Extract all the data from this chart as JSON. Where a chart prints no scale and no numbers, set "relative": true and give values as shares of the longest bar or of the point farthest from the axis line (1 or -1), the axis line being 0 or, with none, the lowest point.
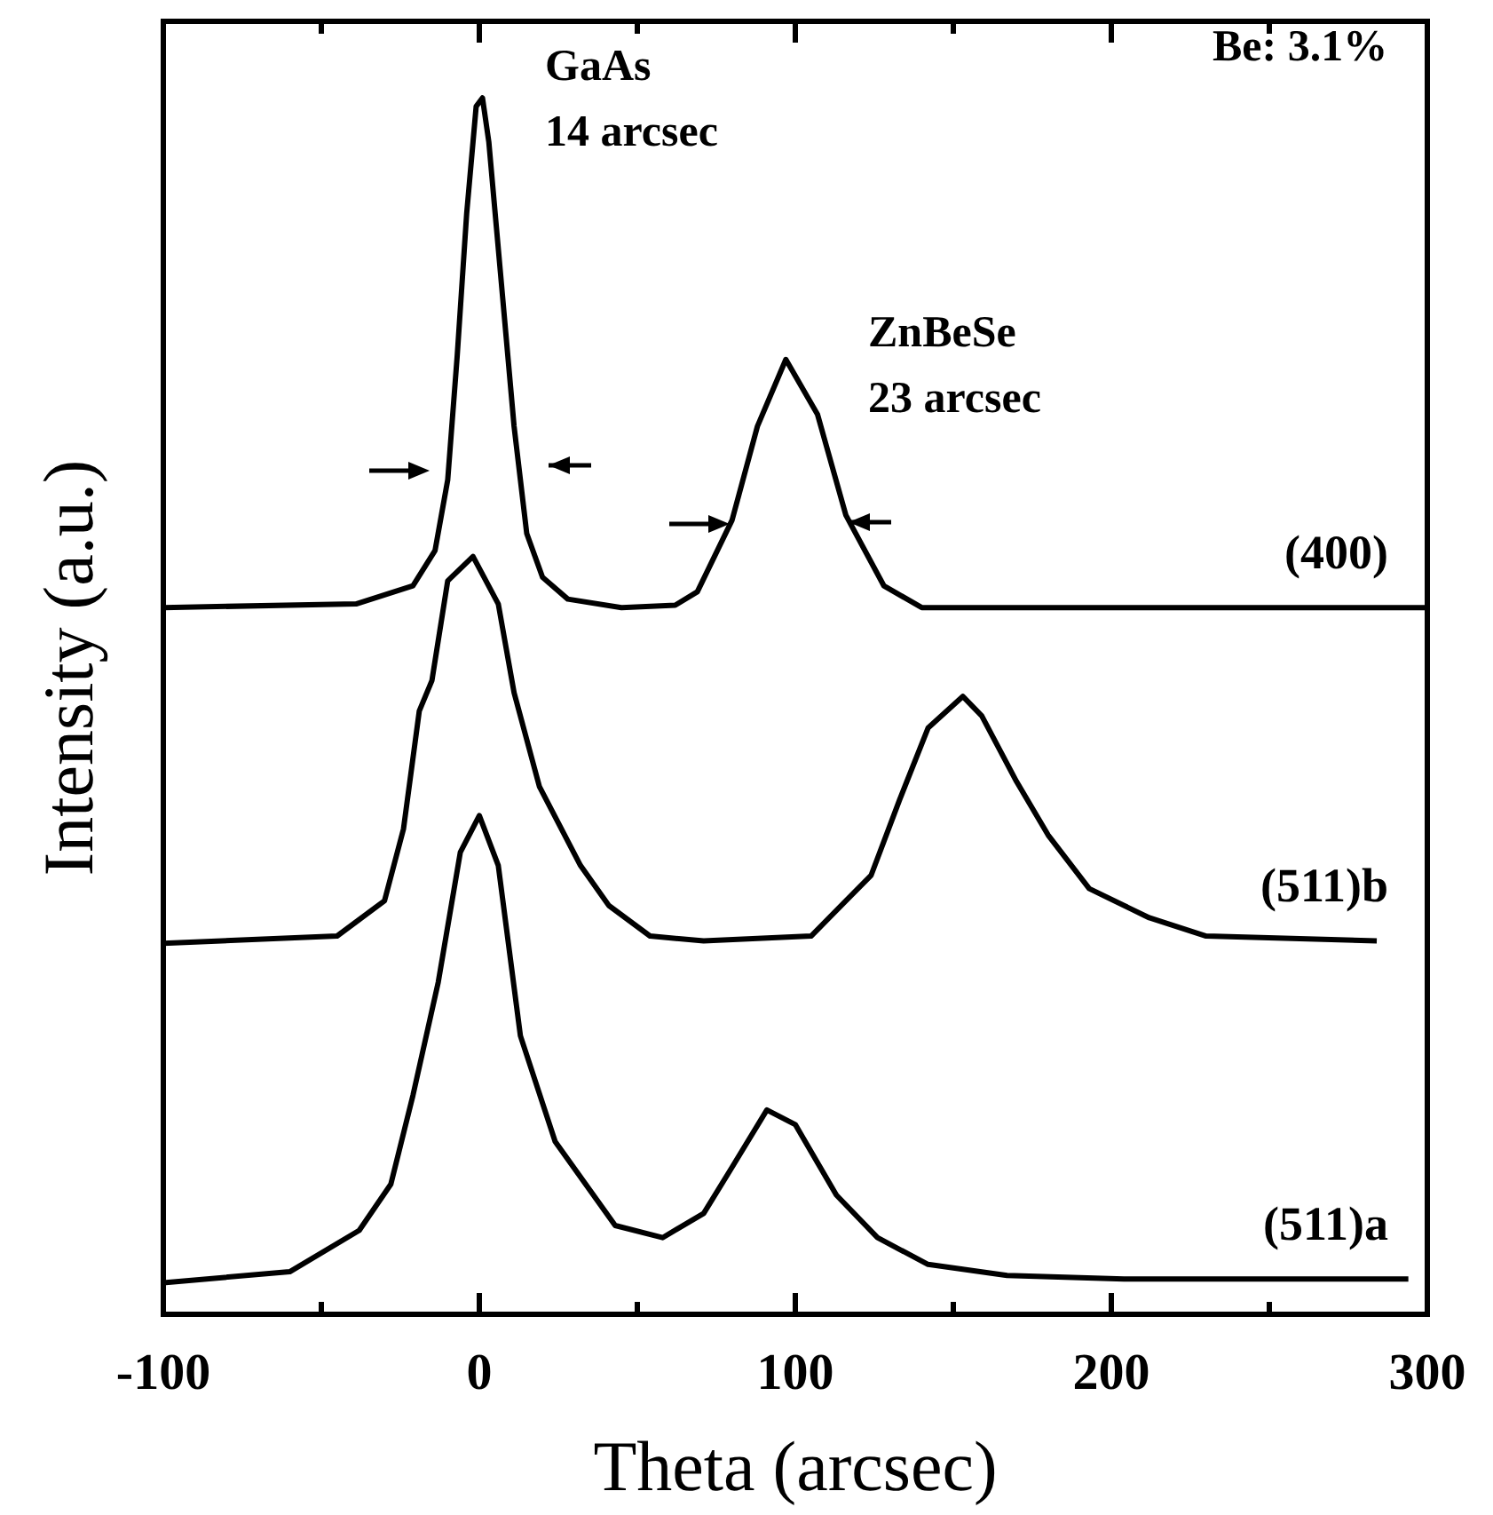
{
  "chart_data": {
    "type": "line",
    "relative": true,
    "xlabel": "Theta  (arcsec)",
    "ylabel": "Intensity (a.u.)",
    "xlim": [
      -100,
      300
    ],
    "xticks": [
      -100,
      {
        "value": -50,
        "label": null
      },
      0,
      {
        "value": 50,
        "label": null
      },
      100,
      {
        "value": 150,
        "label": null
      },
      200,
      {
        "value": 250,
        "label": null
      },
      300
    ],
    "marker": "none",
    "line_style": "solid",
    "annotations": [
      "Be: 3.1%",
      "GaAs",
      "14 arcsec",
      "ZnBeSe",
      "23 arcsec"
    ],
    "series": [
      {
        "name": "(400)",
        "color": "#000000",
        "x": [
          -100,
          -39,
          -21,
          -14,
          -10,
          -7,
          -4,
          -1,
          1,
          3,
          7,
          11,
          15,
          20,
          28,
          45,
          62,
          69,
          80,
          88,
          97,
          107,
          116,
          128,
          140,
          300
        ],
        "values": [
          0.581,
          0.584,
          0.599,
          0.628,
          0.686,
          0.788,
          0.905,
          0.993,
          1.0,
          0.964,
          0.847,
          0.73,
          0.642,
          0.606,
          0.588,
          0.581,
          0.583,
          0.594,
          0.653,
          0.73,
          0.785,
          0.74,
          0.657,
          0.599,
          0.581,
          0.581
        ]
      },
      {
        "name": "(511)b",
        "color": "#000000",
        "x": [
          -100,
          -45,
          -30,
          -24,
          -19,
          -15,
          -10,
          -2,
          6,
          11,
          19,
          32,
          41,
          54,
          71,
          105,
          124,
          133,
          142,
          153,
          159,
          170,
          180,
          193,
          212,
          230,
          284
        ],
        "values": [
          0.305,
          0.311,
          0.34,
          0.399,
          0.496,
          0.521,
          0.603,
          0.623,
          0.584,
          0.511,
          0.434,
          0.369,
          0.336,
          0.311,
          0.307,
          0.311,
          0.361,
          0.423,
          0.482,
          0.508,
          0.492,
          0.438,
          0.394,
          0.35,
          0.326,
          0.311,
          0.307
        ]
      },
      {
        "name": "(511)a",
        "color": "#000000",
        "x": [
          -100,
          -60,
          -38,
          -28,
          -21,
          -13,
          -6,
          0,
          6,
          13,
          24,
          43,
          58,
          71,
          80,
          91,
          100,
          113,
          126,
          142,
          167,
          204,
          294
        ],
        "values": [
          0.026,
          0.035,
          0.069,
          0.107,
          0.18,
          0.273,
          0.38,
          0.41,
          0.369,
          0.229,
          0.142,
          0.073,
          0.063,
          0.083,
          0.121,
          0.168,
          0.156,
          0.098,
          0.063,
          0.041,
          0.032,
          0.029,
          0.029
        ]
      }
    ]
  }
}
